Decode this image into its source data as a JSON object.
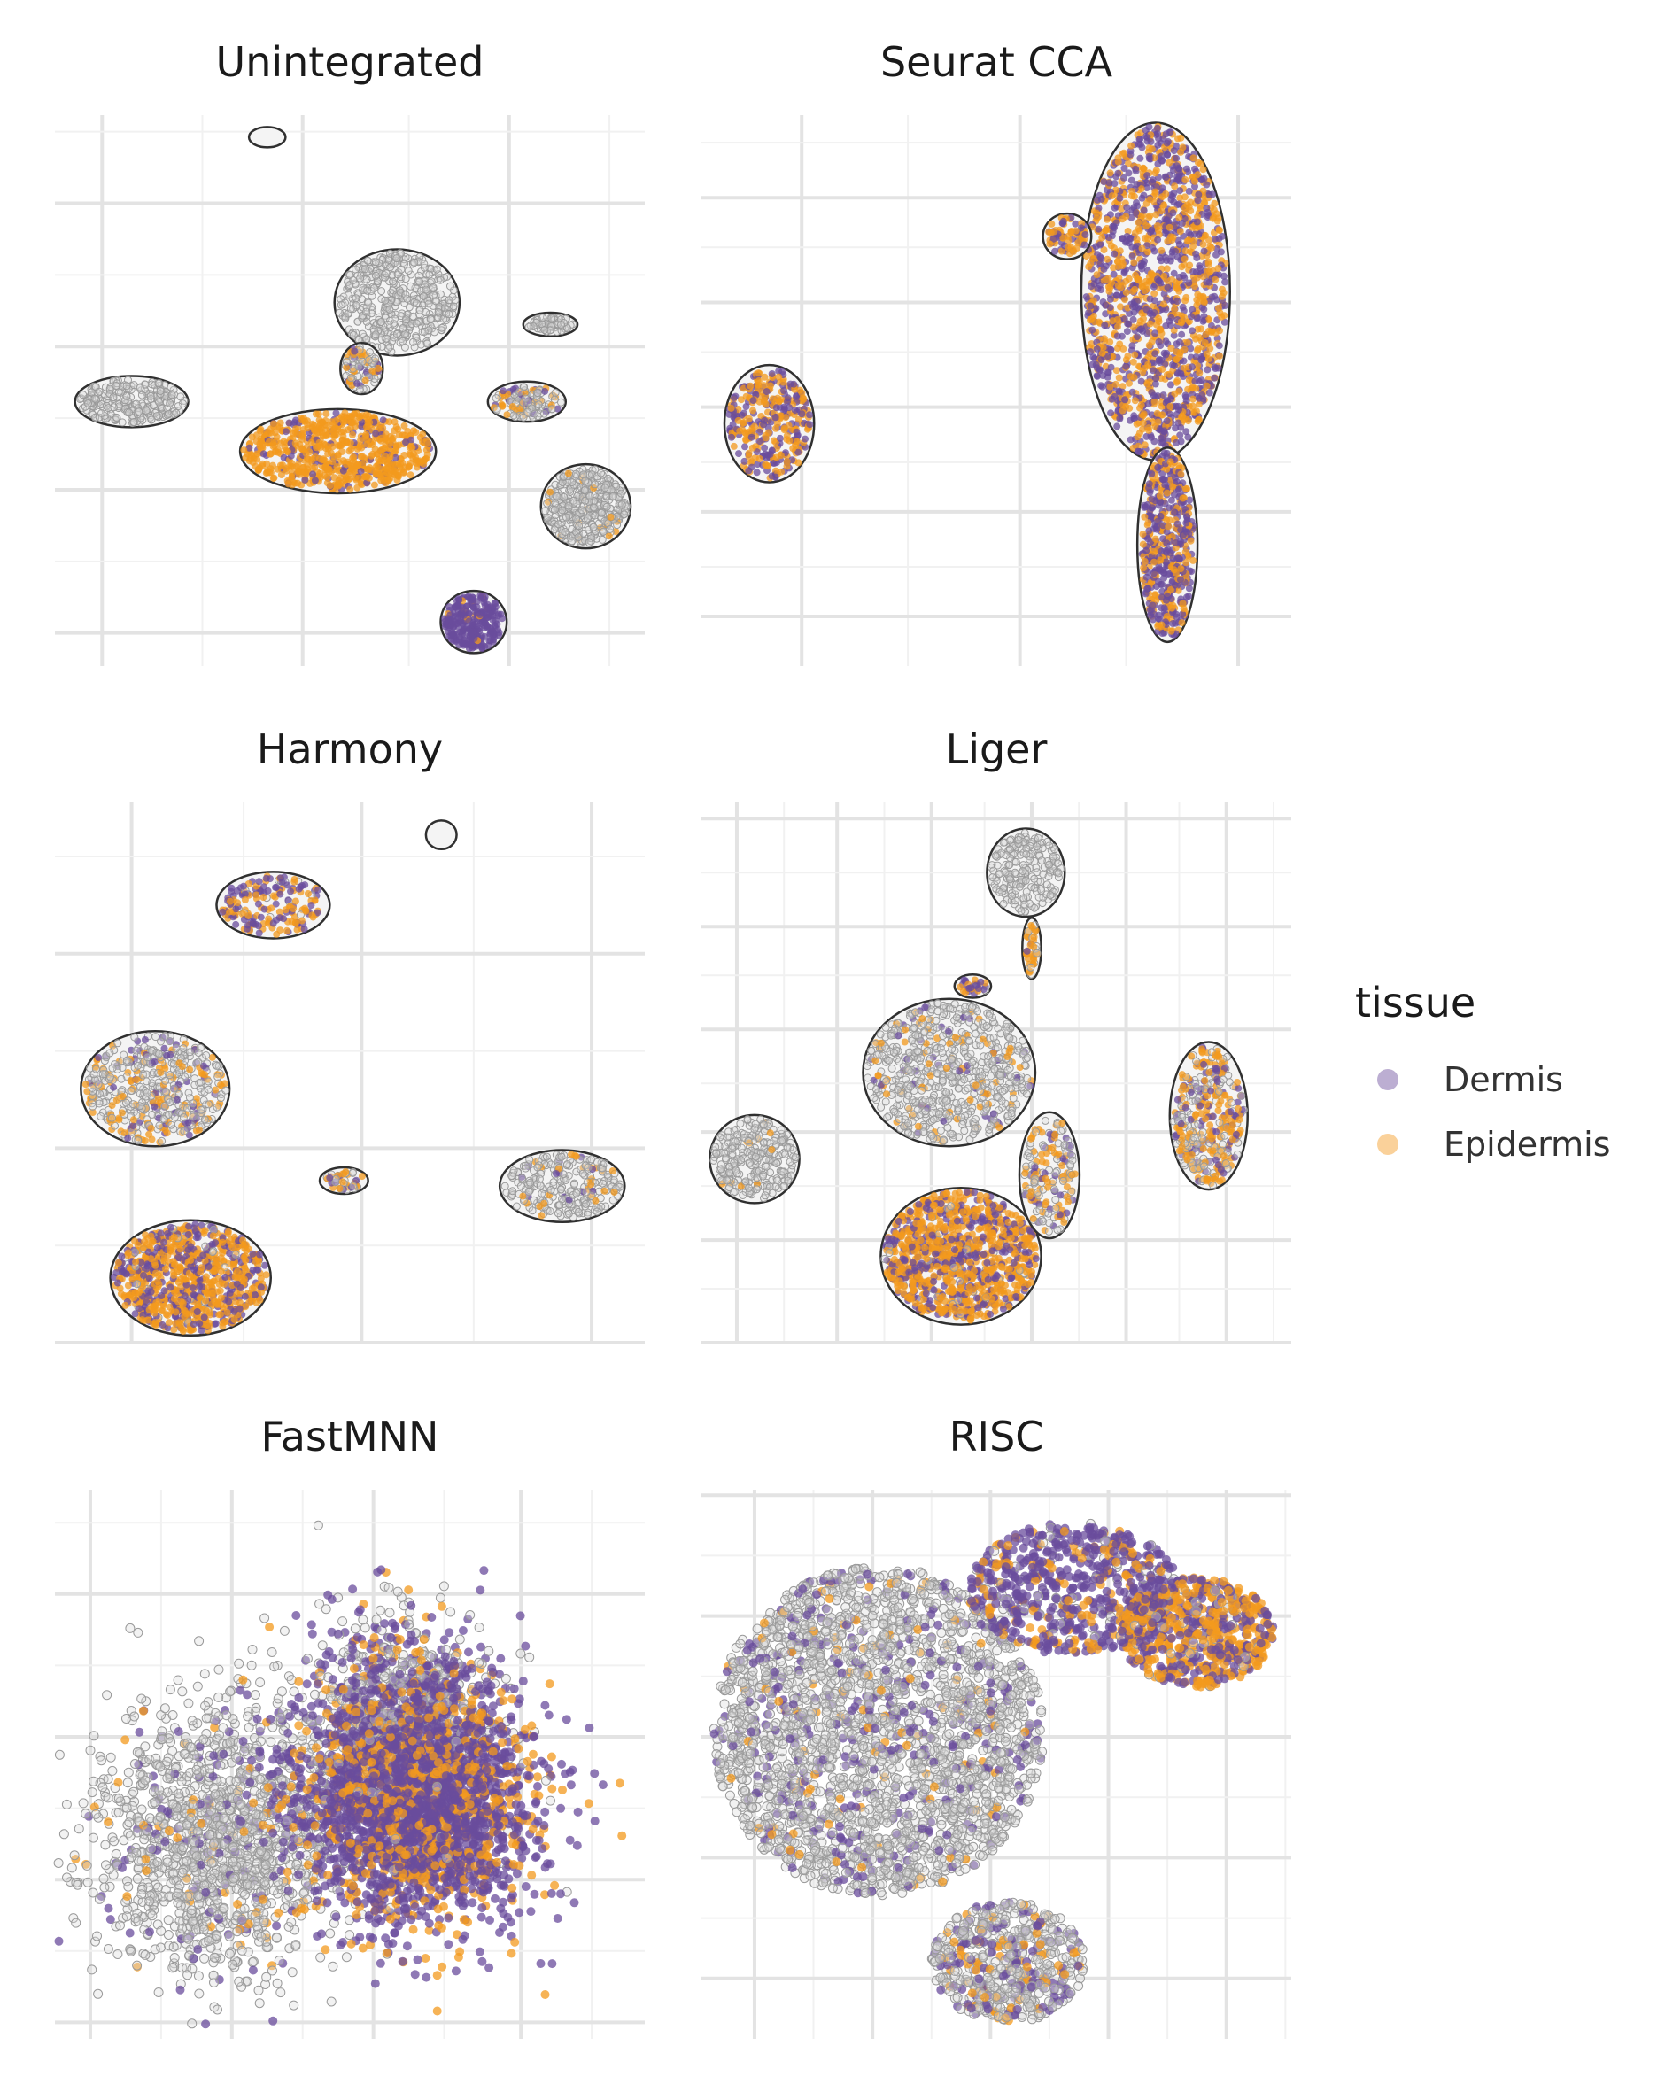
{
  "colors": {
    "dermis": "#6a4c9c",
    "epidermis": "#f39a1e",
    "background_cells": "#d9d9d9",
    "outline": "#303030",
    "grid_major": "#e3e3e3",
    "grid_minor": "#f1f1f1"
  },
  "legend": {
    "title": "tissue",
    "items": [
      {
        "label": "Dermis",
        "color": "#6a4c9c"
      },
      {
        "label": "Epidermis",
        "color": "#f39a1e"
      }
    ]
  },
  "chart_data": [
    {
      "type": "scatter",
      "title": "Unintegrated",
      "xlabel": "",
      "ylabel": "",
      "grid": true,
      "series": [
        {
          "name": "Dermis"
        },
        {
          "name": "Epidermis"
        }
      ],
      "clusters": [
        {
          "center": [
            0.36,
            0.96
          ],
          "radius": [
            0.025,
            0.012
          ],
          "n": 0,
          "mix": [
            0.0,
            0.0
          ],
          "outline": true
        },
        {
          "center": [
            0.58,
            0.66
          ],
          "radius": [
            0.1,
            0.09
          ],
          "n": 420,
          "mix": [
            0.0,
            0.0
          ],
          "outline": true
        },
        {
          "center": [
            0.13,
            0.48
          ],
          "radius": [
            0.09,
            0.04
          ],
          "n": 240,
          "mix": [
            0.0,
            0.0
          ],
          "outline": true
        },
        {
          "center": [
            0.84,
            0.62
          ],
          "radius": [
            0.04,
            0.015
          ],
          "n": 60,
          "mix": [
            0.0,
            0.0
          ],
          "outline": true
        },
        {
          "center": [
            0.52,
            0.54
          ],
          "radius": [
            0.03,
            0.04
          ],
          "n": 90,
          "mix": [
            0.15,
            0.3
          ],
          "outline": true
        },
        {
          "center": [
            0.8,
            0.48
          ],
          "radius": [
            0.06,
            0.03
          ],
          "n": 140,
          "mix": [
            0.1,
            0.3
          ],
          "outline": true
        },
        {
          "center": [
            0.48,
            0.39
          ],
          "radius": [
            0.16,
            0.07
          ],
          "n": 700,
          "mix": [
            0.15,
            0.85
          ],
          "outline": true
        },
        {
          "center": [
            0.9,
            0.29
          ],
          "radius": [
            0.07,
            0.07
          ],
          "n": 380,
          "mix": [
            0.0,
            0.05
          ],
          "outline": true
        },
        {
          "center": [
            0.71,
            0.08
          ],
          "radius": [
            0.05,
            0.05
          ],
          "n": 260,
          "mix": [
            0.95,
            0.05
          ],
          "outline": true
        }
      ]
    },
    {
      "type": "scatter",
      "title": "Seurat CCA",
      "xlabel": "",
      "ylabel": "",
      "grid": true,
      "series": [
        {
          "name": "Dermis"
        },
        {
          "name": "Epidermis"
        }
      ],
      "clusters": [
        {
          "center": [
            0.77,
            0.68
          ],
          "radius": [
            0.12,
            0.3
          ],
          "n": 1500,
          "mix": [
            0.55,
            0.45
          ],
          "outline": true
        },
        {
          "center": [
            0.79,
            0.22
          ],
          "radius": [
            0.045,
            0.17
          ],
          "n": 500,
          "mix": [
            0.55,
            0.45
          ],
          "outline": true
        },
        {
          "center": [
            0.62,
            0.78
          ],
          "radius": [
            0.035,
            0.035
          ],
          "n": 80,
          "mix": [
            0.4,
            0.6
          ],
          "outline": true
        },
        {
          "center": [
            0.115,
            0.44
          ],
          "radius": [
            0.07,
            0.1
          ],
          "n": 350,
          "mix": [
            0.5,
            0.5
          ],
          "outline": true
        }
      ]
    },
    {
      "type": "scatter",
      "title": "Harmony",
      "xlabel": "",
      "ylabel": "",
      "grid": true,
      "series": [
        {
          "name": "Dermis"
        },
        {
          "name": "Epidermis"
        }
      ],
      "clusters": [
        {
          "center": [
            0.655,
            0.94
          ],
          "radius": [
            0.02,
            0.02
          ],
          "n": 0,
          "mix": [
            0.0,
            0.0
          ],
          "outline": true
        },
        {
          "center": [
            0.37,
            0.81
          ],
          "radius": [
            0.09,
            0.055
          ],
          "n": 180,
          "mix": [
            0.4,
            0.55
          ],
          "outline": true
        },
        {
          "center": [
            0.17,
            0.47
          ],
          "radius": [
            0.12,
            0.1
          ],
          "n": 500,
          "mix": [
            0.1,
            0.2
          ],
          "outline": true
        },
        {
          "center": [
            0.49,
            0.3
          ],
          "radius": [
            0.035,
            0.018
          ],
          "n": 40,
          "mix": [
            0.2,
            0.5
          ],
          "outline": true
        },
        {
          "center": [
            0.86,
            0.29
          ],
          "radius": [
            0.1,
            0.06
          ],
          "n": 260,
          "mix": [
            0.05,
            0.1
          ],
          "outline": true
        },
        {
          "center": [
            0.23,
            0.12
          ],
          "radius": [
            0.13,
            0.1
          ],
          "n": 900,
          "mix": [
            0.35,
            0.6
          ],
          "outline": true
        }
      ]
    },
    {
      "type": "scatter",
      "title": "Liger",
      "xlabel": "",
      "ylabel": "",
      "grid": true,
      "series": [
        {
          "name": "Dermis"
        },
        {
          "name": "Epidermis"
        }
      ],
      "clusters": [
        {
          "center": [
            0.55,
            0.87
          ],
          "radius": [
            0.06,
            0.075
          ],
          "n": 200,
          "mix": [
            0.0,
            0.0
          ],
          "outline": true
        },
        {
          "center": [
            0.56,
            0.73
          ],
          "radius": [
            0.01,
            0.05
          ],
          "n": 40,
          "mix": [
            0.1,
            0.6
          ],
          "outline": true
        },
        {
          "center": [
            0.46,
            0.66
          ],
          "radius": [
            0.025,
            0.015
          ],
          "n": 30,
          "mix": [
            0.5,
            0.4
          ],
          "outline": true
        },
        {
          "center": [
            0.42,
            0.5
          ],
          "radius": [
            0.14,
            0.13
          ],
          "n": 700,
          "mix": [
            0.05,
            0.1
          ],
          "outline": true
        },
        {
          "center": [
            0.09,
            0.34
          ],
          "radius": [
            0.07,
            0.075
          ],
          "n": 260,
          "mix": [
            0.0,
            0.05
          ],
          "outline": true
        },
        {
          "center": [
            0.86,
            0.42
          ],
          "radius": [
            0.06,
            0.13
          ],
          "n": 380,
          "mix": [
            0.2,
            0.45
          ],
          "outline": true
        },
        {
          "center": [
            0.44,
            0.16
          ],
          "radius": [
            0.13,
            0.12
          ],
          "n": 1100,
          "mix": [
            0.3,
            0.65
          ],
          "outline": true
        },
        {
          "center": [
            0.59,
            0.31
          ],
          "radius": [
            0.045,
            0.11
          ],
          "n": 180,
          "mix": [
            0.15,
            0.3
          ],
          "outline": true
        }
      ]
    },
    {
      "type": "scatter",
      "title": "FastMNN",
      "xlabel": "",
      "ylabel": "",
      "grid": true,
      "series": [
        {
          "name": "Dermis"
        },
        {
          "name": "Epidermis"
        }
      ],
      "clusters": [
        {
          "center": [
            0.28,
            0.36
          ],
          "radius": [
            0.22,
            0.24
          ],
          "n": 1500,
          "mix": [
            0.08,
            0.04
          ],
          "outline": false,
          "spread": "gauss"
        },
        {
          "center": [
            0.58,
            0.57
          ],
          "radius": [
            0.17,
            0.2
          ],
          "n": 1400,
          "mix": [
            0.35,
            0.1
          ],
          "outline": false,
          "spread": "gauss"
        },
        {
          "center": [
            0.62,
            0.42
          ],
          "radius": [
            0.2,
            0.22
          ],
          "n": 2400,
          "mix": [
            0.7,
            0.28
          ],
          "outline": false,
          "spread": "gauss"
        }
      ]
    },
    {
      "type": "scatter",
      "title": "RISC",
      "xlabel": "",
      "ylabel": "",
      "grid": true,
      "series": [
        {
          "name": "Dermis"
        },
        {
          "name": "Epidermis"
        }
      ],
      "clusters": [
        {
          "center": [
            0.3,
            0.56
          ],
          "radius": [
            0.28,
            0.3
          ],
          "n": 2600,
          "mix": [
            0.12,
            0.04
          ],
          "outline": false,
          "spread": "uniform"
        },
        {
          "center": [
            0.63,
            0.82
          ],
          "radius": [
            0.18,
            0.12
          ],
          "n": 700,
          "mix": [
            0.7,
            0.2
          ],
          "outline": false,
          "spread": "uniform"
        },
        {
          "center": [
            0.84,
            0.74
          ],
          "radius": [
            0.13,
            0.1
          ],
          "n": 650,
          "mix": [
            0.35,
            0.6
          ],
          "outline": false,
          "spread": "uniform"
        },
        {
          "center": [
            0.52,
            0.14
          ],
          "radius": [
            0.13,
            0.11
          ],
          "n": 600,
          "mix": [
            0.2,
            0.12
          ],
          "outline": false,
          "spread": "uniform"
        }
      ]
    }
  ]
}
